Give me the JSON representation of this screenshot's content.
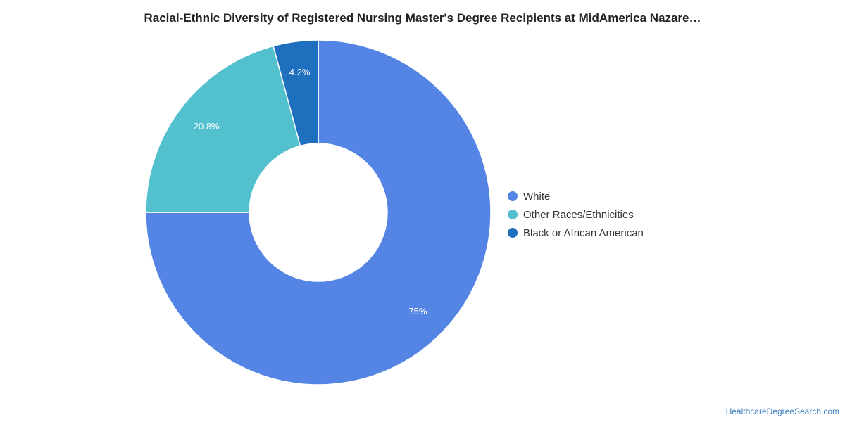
{
  "chart_data": {
    "type": "pie",
    "title": "Racial-Ethnic Diversity of Registered Nursing Master's Degree Recipients at MidAmerica Nazare…",
    "slices": [
      {
        "label": "White",
        "value": 75,
        "display": "75%",
        "color": "#5484e4"
      },
      {
        "label": "Other Races/Ethnicities",
        "value": 20.8,
        "display": "20.8%",
        "color": "#52c1cd"
      },
      {
        "label": "Black or African American",
        "value": 4.2,
        "display": "4.2%",
        "color": "#1f6fbf"
      }
    ],
    "legend_position": "right"
  },
  "watermark": "HealthcareDegreeSearch.com"
}
